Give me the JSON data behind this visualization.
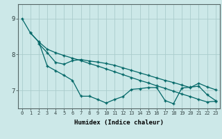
{
  "xlabel": "Humidex (Indice chaleur)",
  "bg_color": "#cce8e8",
  "grid_color": "#aacccc",
  "line_color": "#006666",
  "xlim": [
    -0.5,
    23.5
  ],
  "ylim": [
    6.5,
    9.4
  ],
  "yticks": [
    7,
    8,
    9
  ],
  "xticks": [
    0,
    1,
    2,
    3,
    4,
    5,
    6,
    7,
    8,
    9,
    10,
    11,
    12,
    13,
    14,
    15,
    16,
    17,
    18,
    19,
    20,
    21,
    22,
    23
  ],
  "series1": [
    9.0,
    8.6,
    8.35,
    8.15,
    8.05,
    7.97,
    7.9,
    7.83,
    7.75,
    7.68,
    7.6,
    7.52,
    7.44,
    7.36,
    7.28,
    7.21,
    7.13,
    7.06,
    6.98,
    6.9,
    6.83,
    6.75,
    6.68,
    6.7
  ],
  "series2": [
    null,
    null,
    8.3,
    8.05,
    7.78,
    7.73,
    7.83,
    7.86,
    7.82,
    7.79,
    7.75,
    7.7,
    7.63,
    7.56,
    7.49,
    7.42,
    7.35,
    7.28,
    7.22,
    7.15,
    7.08,
    7.2,
    7.1,
    7.02
  ],
  "series3": [
    null,
    8.6,
    8.35,
    7.68,
    7.55,
    7.42,
    7.28,
    6.84,
    6.84,
    6.75,
    6.65,
    6.75,
    6.83,
    7.03,
    7.05,
    7.08,
    7.08,
    6.72,
    6.63,
    7.07,
    7.09,
    7.12,
    6.88,
    6.72
  ]
}
